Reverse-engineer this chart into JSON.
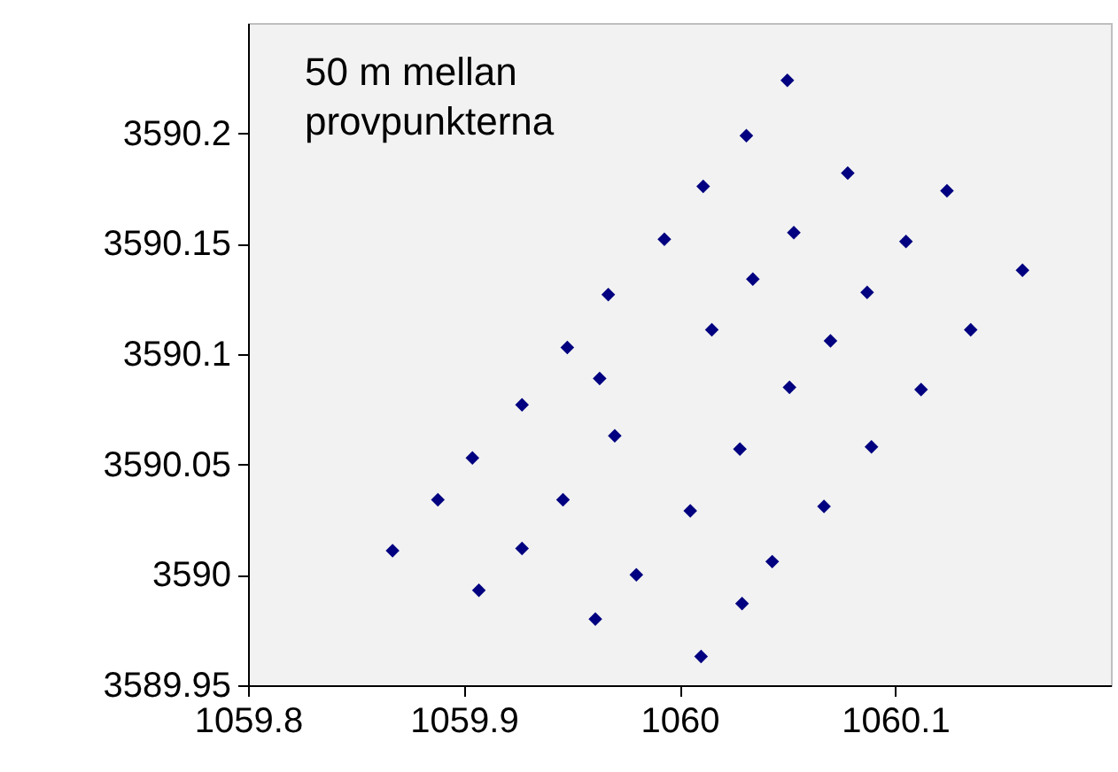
{
  "chart_data": {
    "type": "scatter",
    "marker": "diamond",
    "annotations": [
      "50 m mellan provpunkterna"
    ],
    "xlim": [
      1059.8,
      1060.2
    ],
    "xticks": [
      1059.8,
      1059.9,
      1060,
      1060.1
    ],
    "ylim": [
      3589.95,
      3590.25
    ],
    "yticks": [
      3589.95,
      3590,
      3590.05,
      3590.1,
      3590.15,
      3590.2
    ],
    "series": [
      {
        "color": "#000080",
        "x": [
          1059.867,
          1059.888,
          1059.904,
          1059.927,
          1059.948,
          1059.967,
          1059.993,
          1060.011,
          1060.031,
          1060.05,
          1059.907,
          1059.927,
          1059.946,
          1059.963,
          1059.97,
          1059.98,
          1059.961,
          1060.005,
          1060.028,
          1060.015,
          1060.034,
          1060.053,
          1060.078,
          1060.01,
          1060.029,
          1060.043,
          1060.067,
          1060.051,
          1060.07,
          1060.087,
          1060.105,
          1060.124,
          1060.089,
          1060.112,
          1060.135,
          1060.159
        ],
        "values": [
          3590.011,
          3590.034,
          3590.053,
          3590.077,
          3590.103,
          3590.127,
          3590.152,
          3590.176,
          3590.199,
          3590.224,
          3589.993,
          3590.012,
          3590.034,
          3590.089,
          3590.063,
          3590,
          3589.98,
          3590.029,
          3590.057,
          3590.111,
          3590.134,
          3590.155,
          3590.182,
          3589.963,
          3589.987,
          3590.006,
          3590.031,
          3590.085,
          3590.106,
          3590.128,
          3590.151,
          3590.174,
          3590.058,
          3590.084,
          3590.111,
          3590.138
        ]
      }
    ]
  }
}
